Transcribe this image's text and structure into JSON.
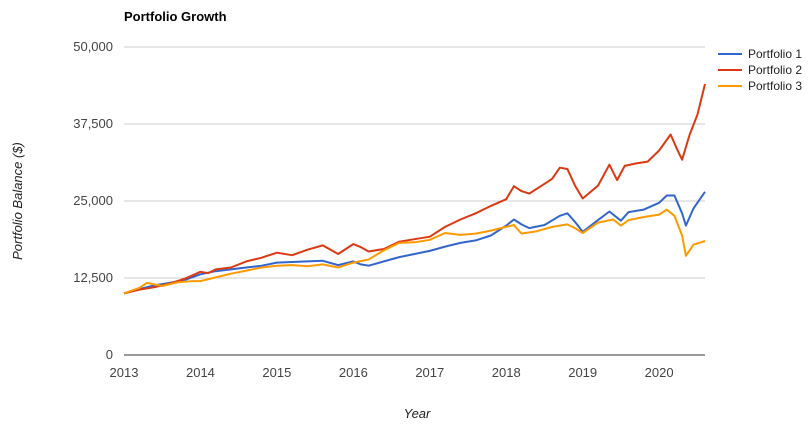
{
  "chart_data": {
    "type": "line",
    "title": "Portfolio Growth",
    "xlabel": "Year",
    "ylabel": "Portfolio Balance ($)",
    "xlim": [
      2013,
      2020.6
    ],
    "ylim": [
      0,
      50000
    ],
    "x_ticks": [
      2013,
      2014,
      2015,
      2016,
      2017,
      2018,
      2019,
      2020
    ],
    "x_tick_labels": [
      "2013",
      "2014",
      "2015",
      "2016",
      "2017",
      "2018",
      "2019",
      "2020"
    ],
    "y_ticks": [
      0,
      12500,
      25000,
      37500,
      50000
    ],
    "y_tick_labels": [
      "0",
      "12,500",
      "25,000",
      "37,500",
      "50,000"
    ],
    "grid": true,
    "legend_position": "right",
    "series": [
      {
        "name": "Portfolio 1",
        "color": "#3366cc",
        "points": [
          [
            2013.0,
            10000
          ],
          [
            2013.2,
            10700
          ],
          [
            2013.4,
            11300
          ],
          [
            2013.6,
            11700
          ],
          [
            2013.8,
            12200
          ],
          [
            2014.0,
            13100
          ],
          [
            2014.2,
            13600
          ],
          [
            2014.4,
            13900
          ],
          [
            2014.6,
            14200
          ],
          [
            2014.8,
            14500
          ],
          [
            2015.0,
            15000
          ],
          [
            2015.2,
            15100
          ],
          [
            2015.4,
            15200
          ],
          [
            2015.6,
            15300
          ],
          [
            2015.8,
            14600
          ],
          [
            2016.0,
            15200
          ],
          [
            2016.1,
            14700
          ],
          [
            2016.2,
            14500
          ],
          [
            2016.4,
            15200
          ],
          [
            2016.6,
            15900
          ],
          [
            2016.8,
            16400
          ],
          [
            2017.0,
            16900
          ],
          [
            2017.2,
            17600
          ],
          [
            2017.4,
            18200
          ],
          [
            2017.6,
            18600
          ],
          [
            2017.8,
            19400
          ],
          [
            2018.0,
            21000
          ],
          [
            2018.1,
            22000
          ],
          [
            2018.2,
            21200
          ],
          [
            2018.3,
            20600
          ],
          [
            2018.5,
            21100
          ],
          [
            2018.7,
            22600
          ],
          [
            2018.8,
            23000
          ],
          [
            2018.9,
            21600
          ],
          [
            2019.0,
            20000
          ],
          [
            2019.2,
            21900
          ],
          [
            2019.35,
            23300
          ],
          [
            2019.5,
            21800
          ],
          [
            2019.6,
            23200
          ],
          [
            2019.8,
            23600
          ],
          [
            2020.0,
            24700
          ],
          [
            2020.1,
            25900
          ],
          [
            2020.2,
            25900
          ],
          [
            2020.3,
            23000
          ],
          [
            2020.35,
            21000
          ],
          [
            2020.45,
            23800
          ],
          [
            2020.6,
            26500
          ]
        ]
      },
      {
        "name": "Portfolio 2",
        "color": "#dc3912",
        "points": [
          [
            2013.0,
            10000
          ],
          [
            2013.2,
            10600
          ],
          [
            2013.4,
            11000
          ],
          [
            2013.6,
            11600
          ],
          [
            2013.8,
            12400
          ],
          [
            2014.0,
            13500
          ],
          [
            2014.1,
            13300
          ],
          [
            2014.2,
            13900
          ],
          [
            2014.4,
            14200
          ],
          [
            2014.6,
            15200
          ],
          [
            2014.8,
            15800
          ],
          [
            2015.0,
            16600
          ],
          [
            2015.2,
            16200
          ],
          [
            2015.4,
            17100
          ],
          [
            2015.6,
            17800
          ],
          [
            2015.8,
            16400
          ],
          [
            2016.0,
            18000
          ],
          [
            2016.1,
            17500
          ],
          [
            2016.2,
            16800
          ],
          [
            2016.4,
            17200
          ],
          [
            2016.6,
            18400
          ],
          [
            2016.8,
            18800
          ],
          [
            2017.0,
            19200
          ],
          [
            2017.1,
            20000
          ],
          [
            2017.2,
            20800
          ],
          [
            2017.4,
            22000
          ],
          [
            2017.6,
            23000
          ],
          [
            2017.8,
            24200
          ],
          [
            2018.0,
            25300
          ],
          [
            2018.1,
            27400
          ],
          [
            2018.2,
            26600
          ],
          [
            2018.3,
            26200
          ],
          [
            2018.5,
            27800
          ],
          [
            2018.6,
            28600
          ],
          [
            2018.7,
            30400
          ],
          [
            2018.8,
            30200
          ],
          [
            2018.9,
            27500
          ],
          [
            2019.0,
            25400
          ],
          [
            2019.2,
            27500
          ],
          [
            2019.35,
            30900
          ],
          [
            2019.45,
            28400
          ],
          [
            2019.55,
            30700
          ],
          [
            2019.7,
            31100
          ],
          [
            2019.85,
            31400
          ],
          [
            2020.0,
            33200
          ],
          [
            2020.15,
            35800
          ],
          [
            2020.25,
            33000
          ],
          [
            2020.3,
            31700
          ],
          [
            2020.4,
            35800
          ],
          [
            2020.5,
            39000
          ],
          [
            2020.6,
            44000
          ]
        ]
      },
      {
        "name": "Portfolio 3",
        "color": "#ff9900",
        "points": [
          [
            2013.0,
            10000
          ],
          [
            2013.2,
            10900
          ],
          [
            2013.3,
            11700
          ],
          [
            2013.5,
            11200
          ],
          [
            2013.7,
            11800
          ],
          [
            2013.9,
            12000
          ],
          [
            2014.0,
            12000
          ],
          [
            2014.2,
            12600
          ],
          [
            2014.4,
            13200
          ],
          [
            2014.6,
            13700
          ],
          [
            2014.8,
            14200
          ],
          [
            2015.0,
            14500
          ],
          [
            2015.2,
            14600
          ],
          [
            2015.4,
            14400
          ],
          [
            2015.6,
            14700
          ],
          [
            2015.8,
            14200
          ],
          [
            2016.0,
            15000
          ],
          [
            2016.2,
            15500
          ],
          [
            2016.4,
            17000
          ],
          [
            2016.6,
            18200
          ],
          [
            2016.8,
            18300
          ],
          [
            2017.0,
            18700
          ],
          [
            2017.2,
            19800
          ],
          [
            2017.4,
            19500
          ],
          [
            2017.6,
            19700
          ],
          [
            2017.8,
            20200
          ],
          [
            2018.0,
            20800
          ],
          [
            2018.1,
            21100
          ],
          [
            2018.2,
            19700
          ],
          [
            2018.4,
            20100
          ],
          [
            2018.6,
            20800
          ],
          [
            2018.8,
            21200
          ],
          [
            2018.9,
            20600
          ],
          [
            2019.0,
            19800
          ],
          [
            2019.2,
            21500
          ],
          [
            2019.4,
            22000
          ],
          [
            2019.5,
            21000
          ],
          [
            2019.6,
            21900
          ],
          [
            2019.8,
            22400
          ],
          [
            2020.0,
            22800
          ],
          [
            2020.1,
            23600
          ],
          [
            2020.2,
            22600
          ],
          [
            2020.3,
            19400
          ],
          [
            2020.35,
            16100
          ],
          [
            2020.45,
            17900
          ],
          [
            2020.6,
            18500
          ]
        ]
      }
    ]
  }
}
